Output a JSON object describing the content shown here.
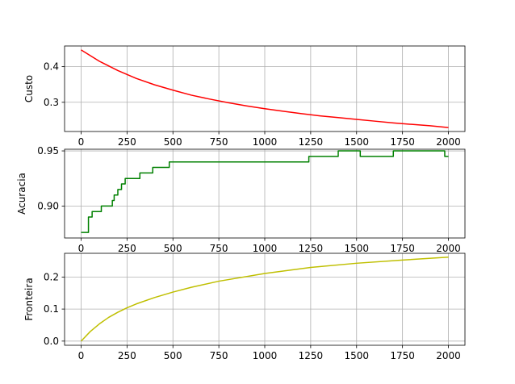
{
  "chart_data": [
    {
      "type": "line",
      "title": "",
      "xlabel": "",
      "ylabel": "Custo",
      "xlim": [
        -90,
        2090
      ],
      "ylim": [
        0.218,
        0.458
      ],
      "xticks": [
        "0",
        "250",
        "500",
        "750",
        "1000",
        "1250",
        "1500",
        "1750",
        "2000"
      ],
      "yticks": [
        "0.3",
        "0.4"
      ],
      "grid": true,
      "legend": "none",
      "series": [
        {
          "color": "#ff0000",
          "x": [
            0,
            100,
            200,
            300,
            400,
            500,
            600,
            700,
            800,
            900,
            1000,
            1100,
            1200,
            1300,
            1400,
            1500,
            1600,
            1700,
            1800,
            1900,
            2000
          ],
          "values": [
            0.447,
            0.415,
            0.389,
            0.367,
            0.349,
            0.334,
            0.32,
            0.309,
            0.299,
            0.29,
            0.282,
            0.275,
            0.268,
            0.262,
            0.257,
            0.252,
            0.247,
            0.242,
            0.238,
            0.234,
            0.229
          ]
        }
      ]
    },
    {
      "type": "line",
      "title": "",
      "xlabel": "",
      "ylabel": "Acuracia",
      "xlim": [
        -90,
        2090
      ],
      "ylim": [
        0.871,
        0.9515
      ],
      "xticks": [
        "0",
        "250",
        "500",
        "750",
        "1000",
        "1250",
        "1500",
        "1750",
        "2000"
      ],
      "yticks": [
        "0.90",
        "0.95"
      ],
      "grid": true,
      "legend": "none",
      "series": [
        {
          "color": "#008000",
          "step": true,
          "x": [
            0,
            30,
            40,
            60,
            110,
            170,
            180,
            200,
            220,
            240,
            320,
            390,
            480,
            1240,
            1400,
            1520,
            1700,
            1980,
            2000
          ],
          "values": [
            0.876,
            0.876,
            0.89,
            0.895,
            0.9,
            0.905,
            0.91,
            0.915,
            0.92,
            0.925,
            0.93,
            0.935,
            0.94,
            0.945,
            0.95,
            0.945,
            0.95,
            0.945,
            0.945
          ]
        }
      ]
    },
    {
      "type": "line",
      "title": "",
      "xlabel": "",
      "ylabel": "Fronteira",
      "xlim": [
        -90,
        2090
      ],
      "ylim": [
        -0.013,
        0.274
      ],
      "xticks": [
        "0",
        "250",
        "500",
        "750",
        "1000",
        "1250",
        "1500",
        "1750",
        "2000"
      ],
      "yticks": [
        "0.0",
        "0.1",
        "0.2"
      ],
      "grid": true,
      "legend": "none",
      "series": [
        {
          "color": "#bfbf00",
          "x": [
            0,
            50,
            100,
            150,
            200,
            250,
            300,
            400,
            500,
            600,
            750,
            1000,
            1250,
            1500,
            1750,
            2000
          ],
          "values": [
            0.0,
            0.03,
            0.054,
            0.074,
            0.09,
            0.104,
            0.116,
            0.136,
            0.153,
            0.168,
            0.187,
            0.211,
            0.23,
            0.243,
            0.253,
            0.262
          ]
        }
      ]
    }
  ]
}
